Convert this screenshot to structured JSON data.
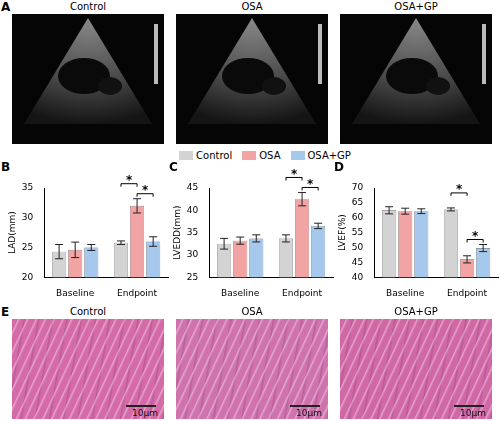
{
  "panel_A": {
    "label": "A",
    "images": [
      "Control",
      "OSA",
      "OSA+GP"
    ]
  },
  "chart_data": [
    {
      "panel": "B",
      "type": "bar",
      "y_label": "LAD(mm)",
      "categories": [
        "Baseline",
        "Endpoint"
      ],
      "series": [
        {
          "name": "Control",
          "color": "#d3d3d3",
          "values": [
            24.3,
            25.8
          ],
          "errors": [
            1.2,
            0.3
          ]
        },
        {
          "name": "OSA",
          "color": "#f2a3a3",
          "values": [
            24.6,
            32.0
          ],
          "errors": [
            1.3,
            1.2
          ]
        },
        {
          "name": "OSA+GP",
          "color": "#a6c8ec",
          "values": [
            25.0,
            26.0
          ],
          "errors": [
            0.5,
            0.8
          ]
        }
      ],
      "ylim": [
        20,
        35
      ],
      "yticks": [
        20,
        25,
        30,
        35
      ],
      "grid": false,
      "significance": [
        {
          "category": "Endpoint",
          "from": "Control",
          "to": "OSA",
          "label": "*"
        },
        {
          "category": "Endpoint",
          "from": "OSA",
          "to": "OSA+GP",
          "label": "*"
        }
      ]
    },
    {
      "panel": "C",
      "type": "bar",
      "y_label": "LVEDD(mm)",
      "categories": [
        "Baseline",
        "Endpoint"
      ],
      "series": [
        {
          "name": "Control",
          "color": "#d3d3d3",
          "values": [
            32.5,
            33.7
          ],
          "errors": [
            1.2,
            0.8
          ]
        },
        {
          "name": "OSA",
          "color": "#f2a3a3",
          "values": [
            33.2,
            42.5
          ],
          "errors": [
            0.8,
            1.5
          ]
        },
        {
          "name": "OSA+GP",
          "color": "#a6c8ec",
          "values": [
            33.7,
            36.5
          ],
          "errors": [
            0.8,
            0.6
          ]
        }
      ],
      "ylim": [
        25,
        45
      ],
      "yticks": [
        25,
        30,
        35,
        40,
        45
      ],
      "grid": false,
      "significance": [
        {
          "category": "Endpoint",
          "from": "Control",
          "to": "OSA",
          "label": "*"
        },
        {
          "category": "Endpoint",
          "from": "OSA",
          "to": "OSA+GP",
          "label": "*"
        }
      ]
    },
    {
      "panel": "D",
      "type": "bar",
      "y_label": "LVEF(%)",
      "categories": [
        "Baseline",
        "Endpoint"
      ],
      "series": [
        {
          "name": "Control",
          "color": "#d3d3d3",
          "values": [
            62.5,
            62.8
          ],
          "errors": [
            1.2,
            0.5
          ]
        },
        {
          "name": "OSA",
          "color": "#f2a3a3",
          "values": [
            62.2,
            46.0
          ],
          "errors": [
            1.0,
            1.2
          ]
        },
        {
          "name": "OSA+GP",
          "color": "#a6c8ec",
          "values": [
            62.2,
            49.8
          ],
          "errors": [
            0.8,
            1.2
          ]
        }
      ],
      "ylim": [
        40,
        70
      ],
      "yticks": [
        40,
        45,
        50,
        55,
        60,
        65,
        70
      ],
      "grid": false,
      "significance": [
        {
          "category": "Endpoint",
          "from": "Control",
          "to": "OSA",
          "label": "*"
        },
        {
          "category": "Endpoint",
          "from": "OSA",
          "to": "OSA+GP",
          "label": "*"
        }
      ]
    }
  ],
  "panel_E": {
    "label": "E",
    "images": [
      "Control",
      "OSA",
      "OSA+GP"
    ],
    "scale_bar": "10μm"
  }
}
